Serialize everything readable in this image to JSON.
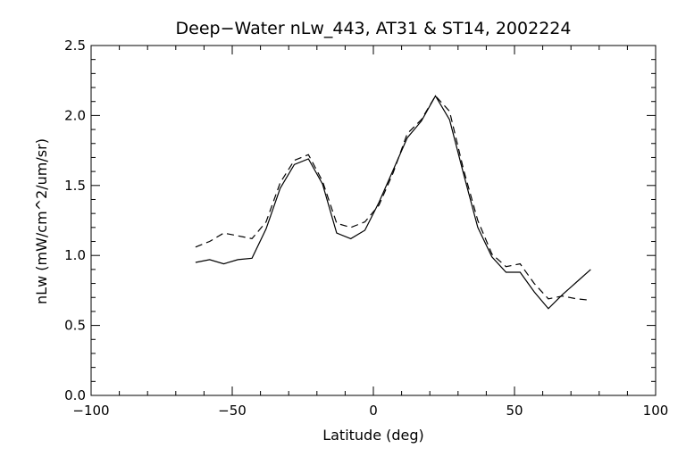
{
  "chart_data": {
    "type": "line",
    "title": "Deep−Water nLw_443, AT31 & ST14, 2002224",
    "xlabel": "Latitude (deg)",
    "ylabel": "nLw (mW/cm^2/um/sr)",
    "xlim": [
      -100,
      100
    ],
    "ylim": [
      0.0,
      2.5
    ],
    "x_ticks": [
      -100,
      -50,
      0,
      50,
      100
    ],
    "x_tick_labels": [
      "−100",
      "−50",
      "0",
      "50",
      "100"
    ],
    "y_ticks": [
      0.0,
      0.5,
      1.0,
      1.5,
      2.0,
      2.5
    ],
    "y_tick_labels": [
      "0.0",
      "0.5",
      "1.0",
      "1.5",
      "2.0",
      "2.5"
    ],
    "grid": false,
    "colors": {
      "axis": "#000000",
      "line": "#000000"
    },
    "series": [
      {
        "style": "solid",
        "x": [
          -63,
          -58,
          -53,
          -48,
          -43,
          -38,
          -33,
          -28,
          -23,
          -18,
          -13,
          -8,
          -3,
          2,
          7,
          12,
          17,
          22,
          27,
          32,
          37,
          42,
          47,
          52,
          57,
          62,
          67,
          72,
          77
        ],
        "y": [
          0.95,
          0.97,
          0.94,
          0.97,
          0.98,
          1.19,
          1.48,
          1.65,
          1.69,
          1.51,
          1.16,
          1.12,
          1.18,
          1.38,
          1.61,
          1.84,
          1.96,
          2.14,
          1.97,
          1.58,
          1.2,
          0.99,
          0.88,
          0.88,
          0.74,
          0.62,
          0.72,
          0.81,
          0.9
        ]
      },
      {
        "style": "dashed",
        "x": [
          -63,
          -58,
          -53,
          -48,
          -43,
          -38,
          -33,
          -28,
          -23,
          -18,
          -13,
          -8,
          -3,
          2,
          7,
          12,
          17,
          22,
          27,
          32,
          37,
          42,
          47,
          52,
          57,
          62,
          67,
          72,
          77
        ],
        "y": [
          1.06,
          1.1,
          1.16,
          1.14,
          1.12,
          1.24,
          1.52,
          1.68,
          1.72,
          1.53,
          1.23,
          1.2,
          1.24,
          1.36,
          1.59,
          1.87,
          1.97,
          2.14,
          2.03,
          1.61,
          1.25,
          1.01,
          0.92,
          0.94,
          0.8,
          0.69,
          0.71,
          0.69,
          0.68
        ]
      }
    ]
  }
}
